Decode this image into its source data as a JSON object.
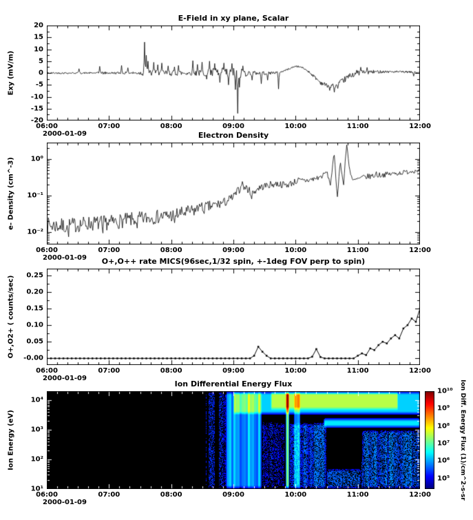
{
  "figure": {
    "bg": "#ffffff",
    "date_label": "2000-01-09",
    "x_ticks": [
      "06:00",
      "07:00",
      "08:00",
      "09:00",
      "10:00",
      "11:00",
      "12:00"
    ],
    "x_range_hours": [
      6,
      12
    ],
    "line_color": "#000000"
  },
  "chart_data": [
    {
      "type": "line",
      "title": "E-Field in xy plane, Scalar",
      "ylabel": "Exy (mV/m)",
      "ylim": [
        -20,
        20
      ],
      "yticks": [
        20,
        15,
        10,
        5,
        0,
        -5,
        -10,
        -15,
        -20
      ],
      "ytick_labels": [
        "20",
        "15",
        "10",
        "5",
        "0",
        "-5",
        "-10",
        "-15",
        "-20"
      ],
      "series": {
        "baseline": [
          [
            6,
            0
          ],
          [
            9.35,
            0
          ],
          [
            9.55,
            0
          ],
          [
            9.75,
            0.3
          ],
          [
            9.9,
            1.8
          ],
          [
            10.0,
            2.9
          ],
          [
            10.1,
            2.4
          ],
          [
            10.2,
            0.8
          ],
          [
            10.3,
            -1.5
          ],
          [
            10.4,
            -4
          ],
          [
            10.5,
            -5.2
          ],
          [
            10.6,
            -5.5
          ],
          [
            10.7,
            -4.5
          ],
          [
            10.8,
            -2.5
          ],
          [
            10.9,
            -0.8
          ],
          [
            11.0,
            0.2
          ],
          [
            11.4,
            0.6
          ],
          [
            11.8,
            0.4
          ],
          [
            12,
            0.2
          ]
        ],
        "noise_envelope": [
          [
            6,
            0.35
          ],
          [
            6.8,
            0.35
          ],
          [
            6.9,
            0.6
          ],
          [
            7.0,
            0.45
          ],
          [
            7.45,
            0.6
          ],
          [
            7.55,
            1.2
          ],
          [
            7.7,
            1.4
          ],
          [
            8.0,
            1.2
          ],
          [
            8.3,
            1.0
          ],
          [
            8.55,
            1.4
          ],
          [
            8.7,
            2.2
          ],
          [
            9.15,
            2.2
          ],
          [
            9.25,
            0.9
          ],
          [
            9.6,
            0.7
          ],
          [
            9.75,
            0.35
          ],
          [
            10.15,
            0.35
          ],
          [
            10.45,
            0.9
          ],
          [
            10.75,
            1.2
          ],
          [
            10.95,
            1.3
          ],
          [
            11.15,
            1.0
          ],
          [
            11.35,
            0.6
          ],
          [
            11.6,
            0.45
          ],
          [
            12,
            0.4
          ]
        ],
        "spikes": [
          [
            6.52,
            1.8
          ],
          [
            6.85,
            2.8
          ],
          [
            7.2,
            3.2
          ],
          [
            7.3,
            2.2
          ],
          [
            7.57,
            13
          ],
          [
            7.6,
            7.5
          ],
          [
            7.63,
            5
          ],
          [
            7.72,
            4.5
          ],
          [
            7.78,
            3.5
          ],
          [
            7.85,
            4.2
          ],
          [
            7.95,
            3
          ],
          [
            8.05,
            2.6
          ],
          [
            8.12,
            3.2
          ],
          [
            8.35,
            5.2
          ],
          [
            8.42,
            3.6
          ],
          [
            8.5,
            4.6
          ],
          [
            8.57,
            -2.6
          ],
          [
            8.62,
            5
          ],
          [
            8.7,
            4
          ],
          [
            8.78,
            -4
          ],
          [
            8.85,
            4.2
          ],
          [
            8.92,
            -5
          ],
          [
            8.98,
            4
          ],
          [
            9.03,
            -7
          ],
          [
            9.07,
            -17
          ],
          [
            9.1,
            -6
          ],
          [
            9.15,
            3
          ],
          [
            9.3,
            -3
          ],
          [
            9.45,
            -4.5
          ],
          [
            9.55,
            -3
          ],
          [
            9.73,
            -7
          ],
          [
            10.55,
            -2
          ],
          [
            10.62,
            -2.8
          ],
          [
            10.68,
            -1.8
          ],
          [
            11.05,
            2.2
          ],
          [
            11.15,
            2
          ],
          [
            11.9,
            -1.6
          ]
        ]
      }
    },
    {
      "type": "line",
      "yscale": "log",
      "title": "Electron Density",
      "ylabel": "e- Density (cm^-3)",
      "ylim_log10": [
        -2.35,
        0.45
      ],
      "yticks_log10": [
        0,
        -1,
        -2
      ],
      "ytick_labels": [
        "10⁰",
        "10⁻¹",
        "10⁻²"
      ],
      "series": {
        "baseline_log10": [
          [
            6,
            -1.82
          ],
          [
            6.3,
            -1.85
          ],
          [
            6.6,
            -1.78
          ],
          [
            7.0,
            -1.75
          ],
          [
            7.3,
            -1.68
          ],
          [
            7.6,
            -1.62
          ],
          [
            8.0,
            -1.55
          ],
          [
            8.3,
            -1.45
          ],
          [
            8.6,
            -1.32
          ],
          [
            8.85,
            -1.2
          ],
          [
            9.0,
            -1.05
          ],
          [
            9.1,
            -0.82
          ],
          [
            9.2,
            -0.78
          ],
          [
            9.3,
            -0.95
          ],
          [
            9.4,
            -0.8
          ],
          [
            9.55,
            -0.72
          ],
          [
            9.7,
            -0.68
          ],
          [
            9.85,
            -0.72
          ],
          [
            10.0,
            -0.62
          ],
          [
            10.15,
            -0.6
          ],
          [
            10.3,
            -0.55
          ],
          [
            10.42,
            -0.48
          ],
          [
            10.5,
            -0.35
          ],
          [
            10.56,
            -0.7
          ],
          [
            10.62,
            0.15
          ],
          [
            10.67,
            -1.05
          ],
          [
            10.72,
            -0.05
          ],
          [
            10.77,
            -0.75
          ],
          [
            10.82,
            0.42
          ],
          [
            10.87,
            -0.3
          ],
          [
            10.92,
            -0.6
          ],
          [
            11.0,
            -0.55
          ],
          [
            11.1,
            -0.5
          ],
          [
            11.3,
            -0.45
          ],
          [
            11.5,
            -0.42
          ],
          [
            11.7,
            -0.38
          ],
          [
            12,
            -0.3
          ]
        ],
        "noise_envelope_log10": [
          [
            6,
            0.22
          ],
          [
            7.5,
            0.2
          ],
          [
            8.5,
            0.18
          ],
          [
            9.0,
            0.12
          ],
          [
            9.4,
            0.1
          ],
          [
            10.3,
            0.09
          ],
          [
            10.5,
            0.05
          ],
          [
            10.95,
            0.05
          ],
          [
            11.1,
            0.08
          ],
          [
            12,
            0.06
          ]
        ],
        "spikes_log10": [
          [
            6.35,
            -0.3
          ],
          [
            6.9,
            -0.28
          ],
          [
            7.45,
            -0.25
          ],
          [
            8.05,
            -0.22
          ],
          [
            8.45,
            0.15
          ],
          [
            9.15,
            0.18
          ],
          [
            9.3,
            -0.15
          ],
          [
            10.05,
            0.1
          ],
          [
            11.3,
            0.1
          ]
        ]
      }
    },
    {
      "type": "line",
      "markers": true,
      "title": "O+,O++ rate MICS(96sec,1/32 spin, +-1deg FOV perp to spin)",
      "ylabel": "O+,O2+ ( counts/sec)",
      "ylim": [
        -0.02,
        0.27
      ],
      "yticks": [
        0.25,
        0.2,
        0.15,
        0.1,
        0.05,
        0
      ],
      "ytick_labels": [
        "0.25",
        "0.20",
        "0.15",
        "0.10",
        "0.05",
        "-0.00"
      ],
      "sample_step_hours": 0.0666667,
      "zero_value": 0,
      "points": [
        [
          9.33,
          0.008
        ],
        [
          9.38,
          0.03
        ],
        [
          9.42,
          0.035
        ],
        [
          9.47,
          0.02
        ],
        [
          9.52,
          0.008
        ],
        [
          10.28,
          0.005
        ],
        [
          10.33,
          0.028
        ],
        [
          10.38,
          0.012
        ],
        [
          10.42,
          0.004
        ],
        [
          11.02,
          0.008
        ],
        [
          11.08,
          0.015
        ],
        [
          11.13,
          0.01
        ],
        [
          11.18,
          0.02
        ],
        [
          11.23,
          0.03
        ],
        [
          11.28,
          0.025
        ],
        [
          11.33,
          0.04
        ],
        [
          11.38,
          0.035
        ],
        [
          11.43,
          0.05
        ],
        [
          11.48,
          0.045
        ],
        [
          11.53,
          0.06
        ],
        [
          11.58,
          0.05
        ],
        [
          11.63,
          0.07
        ],
        [
          11.68,
          0.06
        ],
        [
          11.73,
          0.09
        ],
        [
          11.78,
          0.13
        ],
        [
          11.83,
          0.1
        ],
        [
          11.88,
          0.12
        ],
        [
          11.93,
          0.11
        ],
        [
          11.97,
          0.155
        ],
        [
          12,
          0.15
        ]
      ]
    },
    {
      "type": "heatmap",
      "title": "Ion Differential Energy Flux",
      "ylabel": "Ion Energy (eV)",
      "ylim_log10": [
        1,
        4.3
      ],
      "yticks_log10": [
        4,
        3,
        2,
        1
      ],
      "ytick_labels": [
        "10⁴",
        "10³",
        "10²",
        "10¹"
      ],
      "colorbar": {
        "label": "Ion Diff. Energy Flux (1)/cm^2-s-sr",
        "tick_values_log10": [
          10,
          9,
          8,
          7,
          6,
          5
        ],
        "tick_labels": [
          "10¹⁰",
          "10⁹",
          "10⁸",
          "10⁷",
          "10⁶",
          "10⁵"
        ],
        "range_log10": [
          4.4,
          10
        ]
      },
      "features": [
        {
          "t": [
            8.55,
            8.9
          ],
          "e": [
            1.0,
            4.3
          ],
          "amp": 0.18,
          "stripe": 0.75,
          "speckle": 0.55
        },
        {
          "t": [
            8.88,
            9.46
          ],
          "e": [
            1.0,
            4.3
          ],
          "amp": 0.5,
          "stripe": 0.55
        },
        {
          "t": [
            9.0,
            12.0
          ],
          "e": [
            3.5,
            4.3
          ],
          "amp": 0.5
        },
        {
          "t": [
            9.6,
            11.65
          ],
          "e": [
            3.65,
            4.3
          ],
          "amp": 0.45
        },
        {
          "t": [
            9.46,
            9.83
          ],
          "e": [
            1.0,
            3.3
          ],
          "amp": 0.16,
          "stripe": 0.6,
          "speckle": 0.6
        },
        {
          "t": [
            9.84,
            9.9
          ],
          "e": [
            1.0,
            4.3
          ],
          "amp": 0.85
        },
        {
          "t": [
            9.97,
            10.08
          ],
          "e": [
            1.0,
            4.3
          ],
          "amp": 0.42,
          "stripe": 0.3
        },
        {
          "t": [
            9.9,
            10.5
          ],
          "e": [
            1.0,
            3.25
          ],
          "amp": 0.33,
          "stripe": 0.6,
          "speckle": 0.35
        },
        {
          "t": [
            10.5,
            11.05
          ],
          "e": [
            1.0,
            1.7
          ],
          "amp": 0.28,
          "speckle": 0.45
        },
        {
          "t": [
            10.45,
            12.0
          ],
          "e": [
            3.05,
            3.4
          ],
          "amp": 0.55
        },
        {
          "t": [
            11.05,
            12.0
          ],
          "e": [
            1.0,
            3.0
          ],
          "amp": 0.34,
          "stripe": 0.45,
          "speckle": 0.4
        },
        {
          "t": [
            10.5,
            11.08
          ],
          "e": [
            1.95,
            3.05
          ],
          "amp": -0.5
        }
      ]
    }
  ]
}
